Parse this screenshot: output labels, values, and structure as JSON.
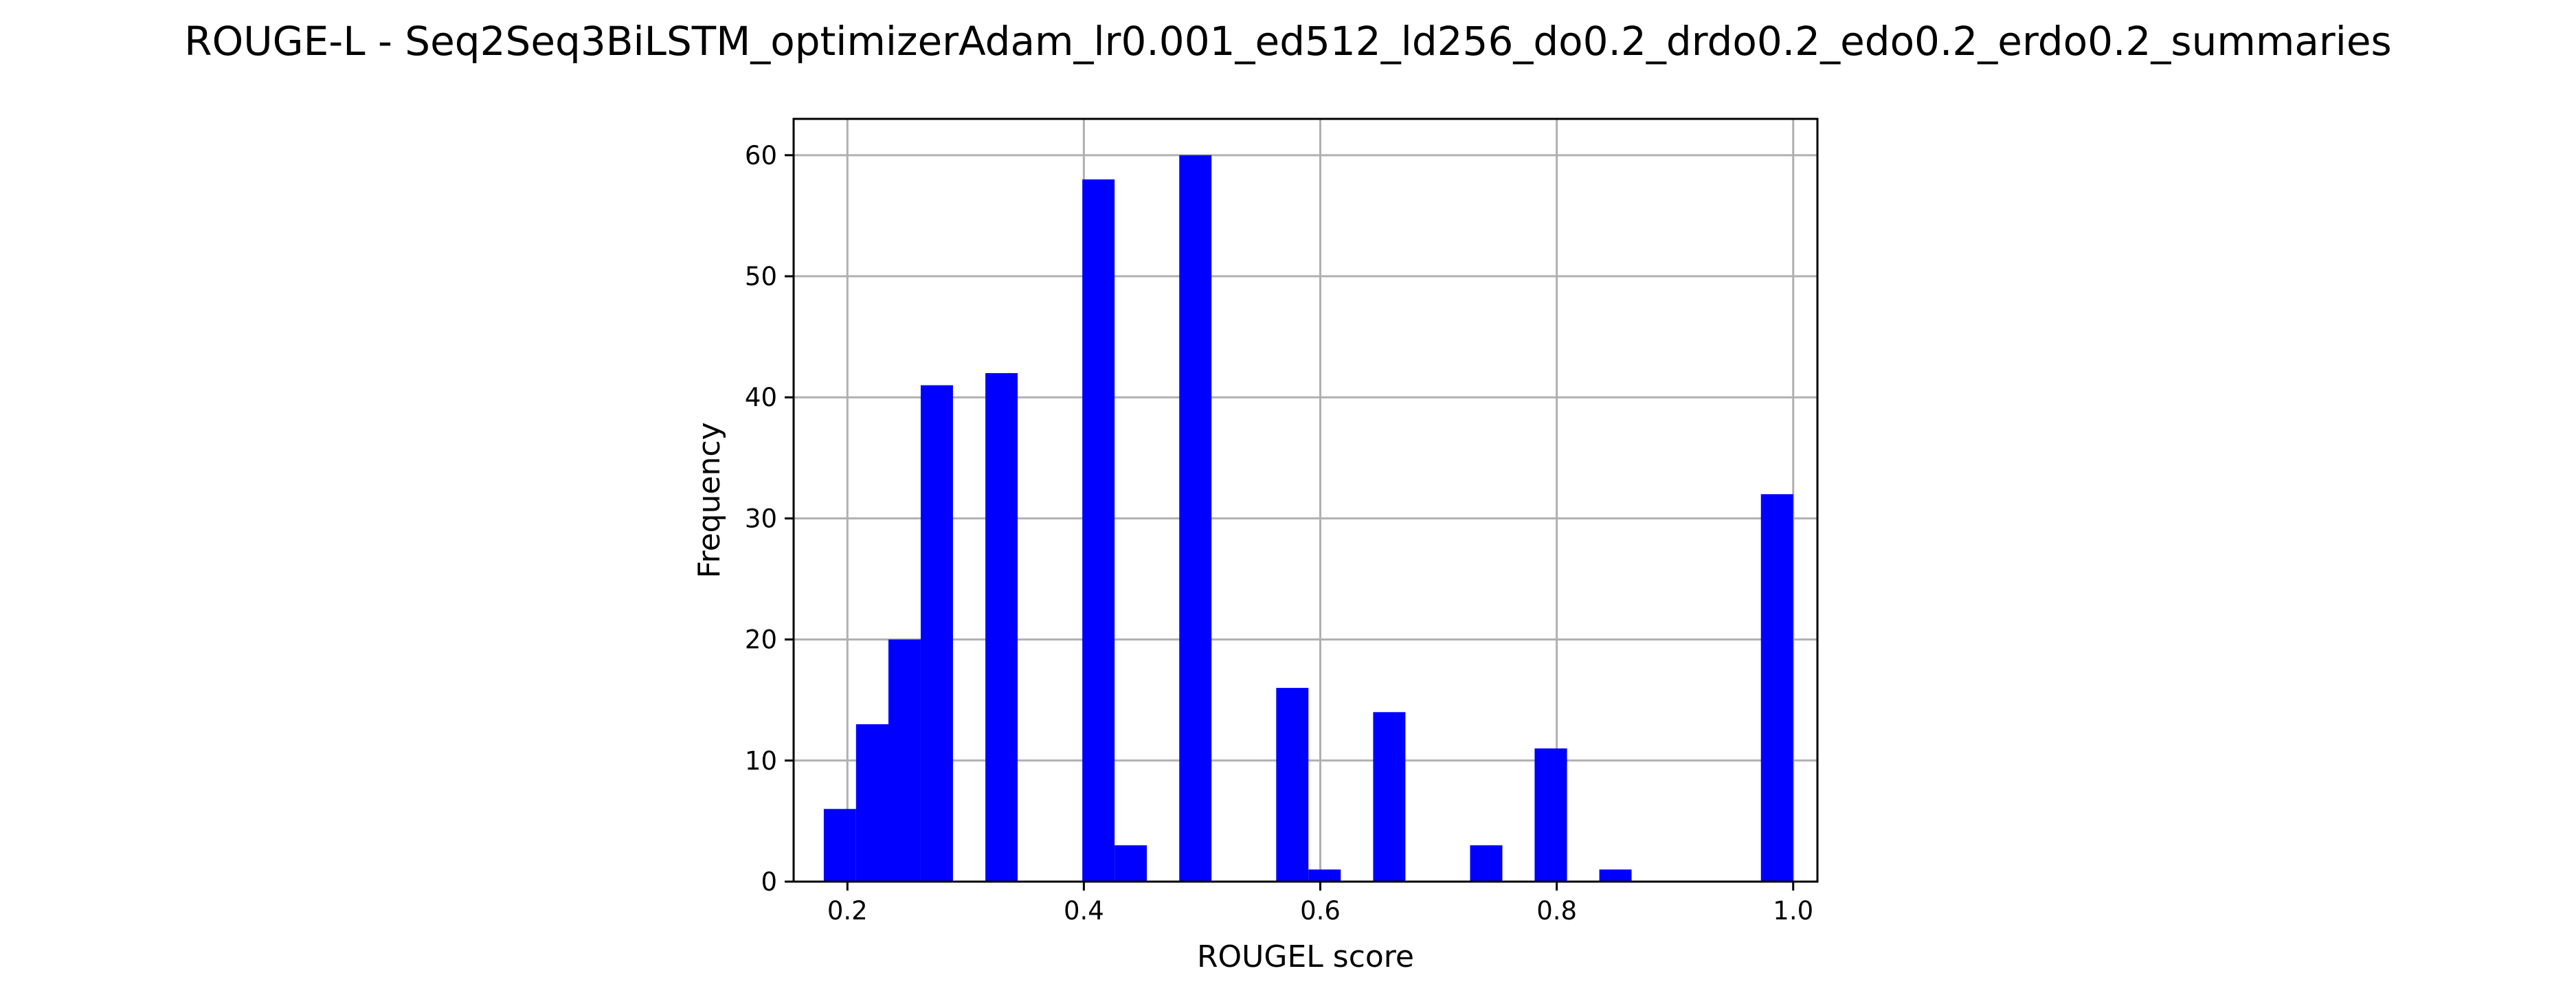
{
  "chart_data": {
    "type": "bar",
    "title": "ROUGE-L - Seq2Seq3BiLSTM_optimizerAdam_lr0.001_ed512_ld256_do0.2_drdo0.2_edo0.2_erdo0.2_summaries",
    "xlabel": "ROUGEL score",
    "ylabel": "Frequency",
    "xlim": [
      0.1545,
      1.0205
    ],
    "ylim": [
      0,
      63
    ],
    "grid": true,
    "bar_color": "#0000ff",
    "x_ticks": [
      0.2,
      0.4,
      0.6,
      0.8,
      1.0
    ],
    "x_tick_labels": [
      "0.2",
      "0.4",
      "0.6",
      "0.8",
      "1.0"
    ],
    "y_ticks": [
      0,
      10,
      20,
      30,
      40,
      50,
      60
    ],
    "y_tick_labels": [
      "0",
      "10",
      "20",
      "30",
      "40",
      "50",
      "60"
    ],
    "bin_width": 0.02733,
    "bins": [
      {
        "x0": 0.18,
        "x1": 0.2073,
        "count": 6
      },
      {
        "x0": 0.2073,
        "x1": 0.2347,
        "count": 13
      },
      {
        "x0": 0.2347,
        "x1": 0.262,
        "count": 20
      },
      {
        "x0": 0.262,
        "x1": 0.2893,
        "count": 41
      },
      {
        "x0": 0.2893,
        "x1": 0.3167,
        "count": 0
      },
      {
        "x0": 0.3167,
        "x1": 0.344,
        "count": 42
      },
      {
        "x0": 0.344,
        "x1": 0.3713,
        "count": 0
      },
      {
        "x0": 0.3713,
        "x1": 0.3987,
        "count": 0
      },
      {
        "x0": 0.3987,
        "x1": 0.426,
        "count": 58
      },
      {
        "x0": 0.426,
        "x1": 0.4533,
        "count": 3
      },
      {
        "x0": 0.4533,
        "x1": 0.4807,
        "count": 0
      },
      {
        "x0": 0.4807,
        "x1": 0.508,
        "count": 60
      },
      {
        "x0": 0.508,
        "x1": 0.5353,
        "count": 0
      },
      {
        "x0": 0.5353,
        "x1": 0.5627,
        "count": 0
      },
      {
        "x0": 0.5627,
        "x1": 0.59,
        "count": 16
      },
      {
        "x0": 0.59,
        "x1": 0.6173,
        "count": 1
      },
      {
        "x0": 0.6173,
        "x1": 0.6447,
        "count": 0
      },
      {
        "x0": 0.6447,
        "x1": 0.672,
        "count": 14
      },
      {
        "x0": 0.672,
        "x1": 0.6993,
        "count": 0
      },
      {
        "x0": 0.6993,
        "x1": 0.7267,
        "count": 0
      },
      {
        "x0": 0.7267,
        "x1": 0.754,
        "count": 3
      },
      {
        "x0": 0.754,
        "x1": 0.7813,
        "count": 0
      },
      {
        "x0": 0.7813,
        "x1": 0.8087,
        "count": 11
      },
      {
        "x0": 0.8087,
        "x1": 0.836,
        "count": 0
      },
      {
        "x0": 0.836,
        "x1": 0.8633,
        "count": 1
      },
      {
        "x0": 0.8633,
        "x1": 0.8907,
        "count": 0
      },
      {
        "x0": 0.8907,
        "x1": 0.918,
        "count": 0
      },
      {
        "x0": 0.918,
        "x1": 0.9453,
        "count": 0
      },
      {
        "x0": 0.9453,
        "x1": 0.9727,
        "count": 0
      },
      {
        "x0": 0.9727,
        "x1": 1.0,
        "count": 32
      }
    ]
  }
}
